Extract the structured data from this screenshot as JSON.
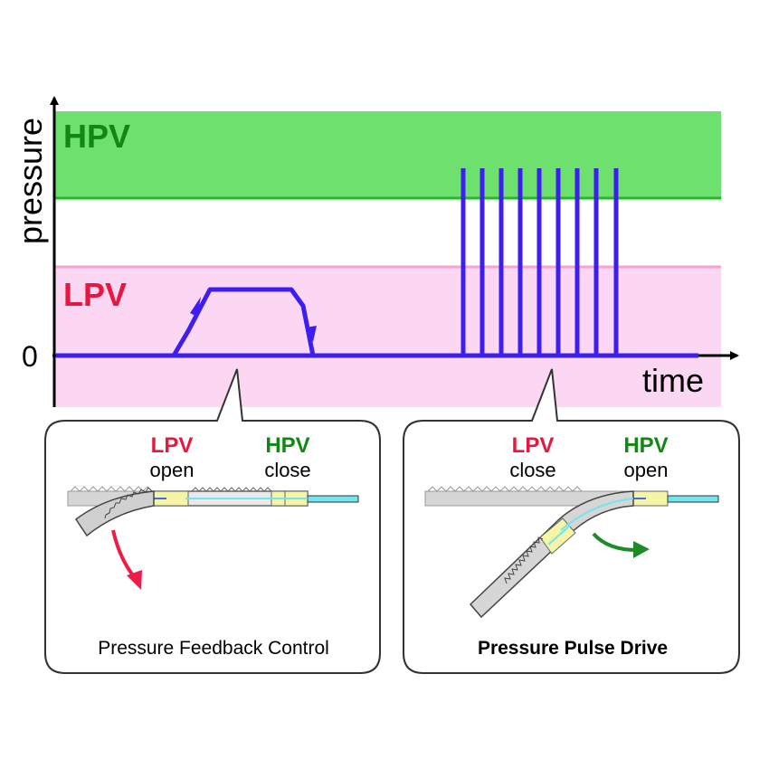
{
  "axes": {
    "y_label": "pressure",
    "x_label": "time",
    "zero_label": "0"
  },
  "bands": {
    "high": {
      "label": "HPV",
      "color": "#6ee06e",
      "line_color": "#22bb22",
      "text_color": "#118811"
    },
    "low": {
      "label": "LPV",
      "color": "#fbd7f4",
      "line_color": "#f7a3cf",
      "text_color": "#e8173f"
    }
  },
  "signal_color": "#3d1ef0",
  "left_panel": {
    "lpv": {
      "name": "LPV",
      "state": "open"
    },
    "hpv": {
      "name": "HPV",
      "state": "close"
    },
    "caption": "Pressure Feedback Control",
    "arrow_color": "#ef1a45"
  },
  "right_panel": {
    "lpv": {
      "name": "LPV",
      "state": "close"
    },
    "hpv": {
      "name": "HPV",
      "state": "open"
    },
    "caption": "Pressure Pulse Drive",
    "arrow_color": "#1f8a2a"
  }
}
